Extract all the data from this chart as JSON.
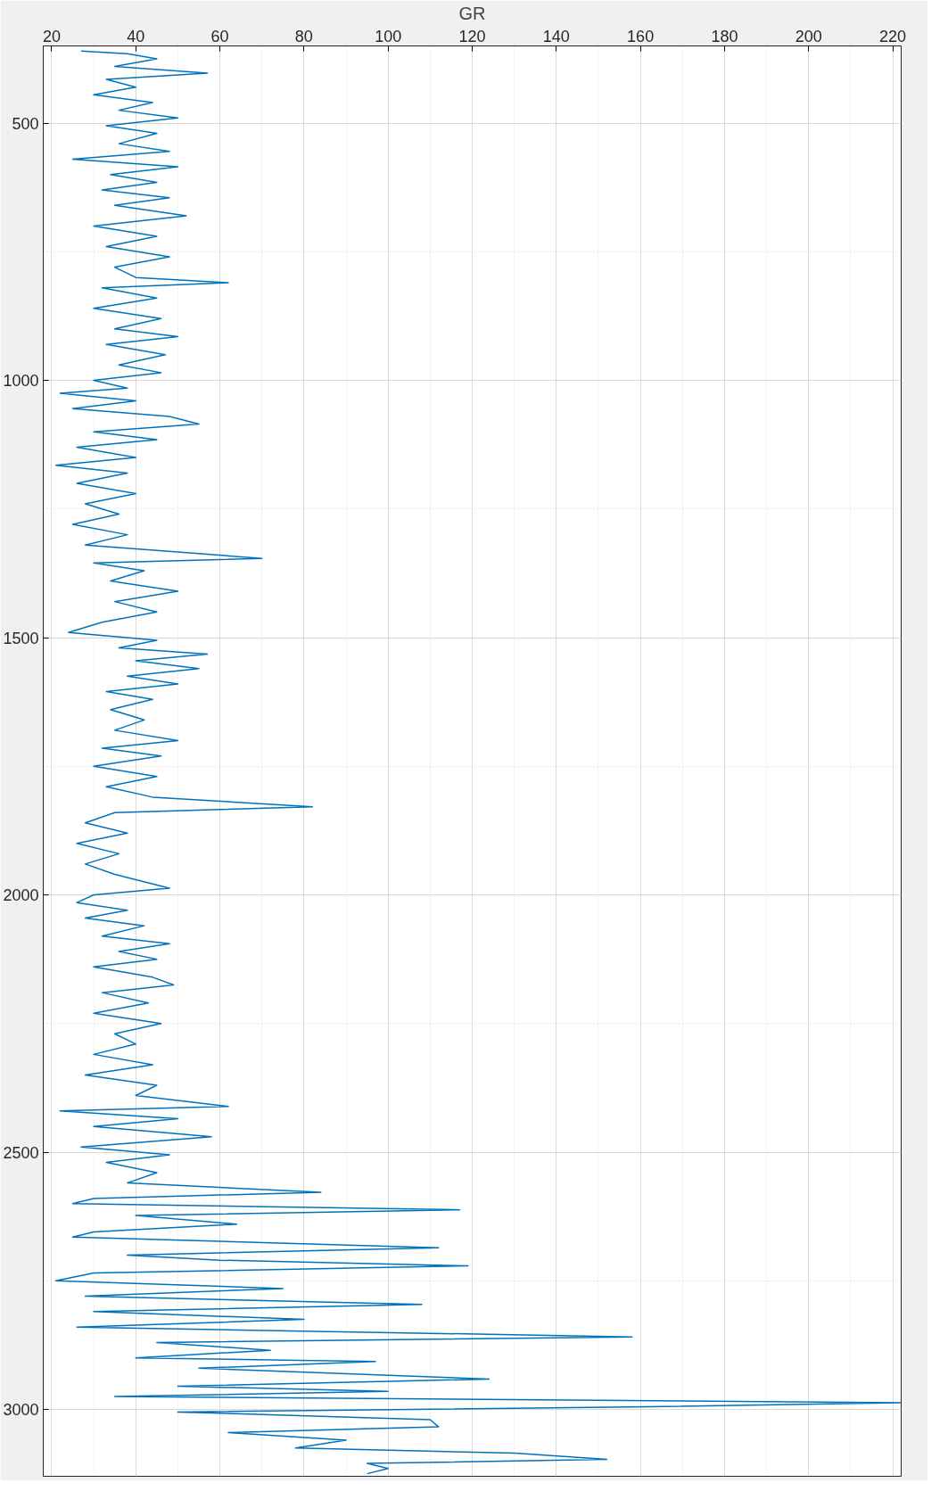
{
  "chart_data": {
    "type": "line",
    "xlabel": "GR",
    "xlim": [
      18,
      222
    ],
    "xticks": [
      20,
      40,
      60,
      80,
      100,
      120,
      140,
      160,
      180,
      200,
      220
    ],
    "ylim": [
      3130,
      350
    ],
    "yticks": [
      500,
      1000,
      1500,
      2000,
      2500,
      3000
    ],
    "grid": true,
    "tick_labels": "xy",
    "series": [
      {
        "color": "#0072bd",
        "x": [
          27,
          38,
          45,
          35,
          57,
          33,
          40,
          30,
          44,
          36,
          50,
          33,
          45,
          36,
          48,
          25,
          50,
          34,
          45,
          32,
          48,
          35,
          52,
          30,
          45,
          33,
          48,
          35,
          40,
          62,
          32,
          45,
          30,
          46,
          35,
          50,
          33,
          47,
          36,
          46,
          30,
          38,
          22,
          40,
          25,
          48,
          55,
          30,
          45,
          26,
          40,
          21,
          38,
          26,
          40,
          28,
          36,
          25,
          38,
          28,
          70,
          30,
          42,
          34,
          50,
          35,
          45,
          32,
          24,
          45,
          36,
          57,
          40,
          55,
          38,
          50,
          33,
          44,
          34,
          42,
          35,
          50,
          32,
          46,
          30,
          45,
          33,
          44,
          82,
          35,
          28,
          38,
          26,
          36,
          28,
          35,
          48,
          30,
          26,
          38,
          28,
          42,
          32,
          48,
          36,
          45,
          30,
          44,
          49,
          32,
          43,
          30,
          46,
          35,
          40,
          30,
          44,
          28,
          45,
          40,
          62,
          22,
          50,
          30,
          58,
          27,
          48,
          33,
          45,
          38,
          84,
          30,
          25,
          117,
          40,
          64,
          30,
          25,
          112,
          38,
          60,
          119,
          30,
          21,
          75,
          28,
          108,
          30,
          80,
          26,
          158,
          45,
          72,
          40,
          97,
          55,
          124,
          50,
          100,
          35,
          222,
          162,
          50,
          110,
          112,
          62,
          90,
          78,
          130,
          152,
          95,
          100,
          95
        ],
        "values": [
          360,
          365,
          375,
          390,
          403,
          415,
          430,
          445,
          460,
          475,
          490,
          505,
          520,
          540,
          555,
          570,
          585,
          600,
          615,
          630,
          645,
          660,
          680,
          700,
          720,
          740,
          760,
          780,
          800,
          810,
          820,
          840,
          860,
          880,
          900,
          915,
          930,
          950,
          970,
          985,
          1000,
          1015,
          1025,
          1040,
          1055,
          1070,
          1085,
          1100,
          1115,
          1130,
          1150,
          1165,
          1180,
          1200,
          1220,
          1240,
          1260,
          1280,
          1300,
          1320,
          1346,
          1355,
          1370,
          1390,
          1410,
          1430,
          1450,
          1470,
          1490,
          1505,
          1520,
          1532,
          1545,
          1560,
          1575,
          1590,
          1605,
          1620,
          1640,
          1660,
          1680,
          1700,
          1715,
          1730,
          1750,
          1770,
          1790,
          1810,
          1829,
          1840,
          1860,
          1880,
          1900,
          1920,
          1940,
          1960,
          1987,
          2000,
          2015,
          2030,
          2045,
          2060,
          2080,
          2095,
          2110,
          2125,
          2140,
          2160,
          2175,
          2190,
          2210,
          2230,
          2250,
          2270,
          2290,
          2310,
          2330,
          2350,
          2370,
          2390,
          2411,
          2420,
          2435,
          2450,
          2470,
          2490,
          2505,
          2520,
          2540,
          2560,
          2578,
          2590,
          2600,
          2612,
          2623,
          2640,
          2655,
          2665,
          2686,
          2700,
          2710,
          2721,
          2735,
          2750,
          2765,
          2780,
          2796,
          2810,
          2825,
          2840,
          2859,
          2870,
          2885,
          2900,
          2907,
          2920,
          2941,
          2955,
          2965,
          2975,
          2987,
          2995,
          3005,
          3020,
          3034,
          3045,
          3060,
          3075,
          3085,
          3097,
          3105,
          3115,
          3125
        ]
      }
    ]
  }
}
